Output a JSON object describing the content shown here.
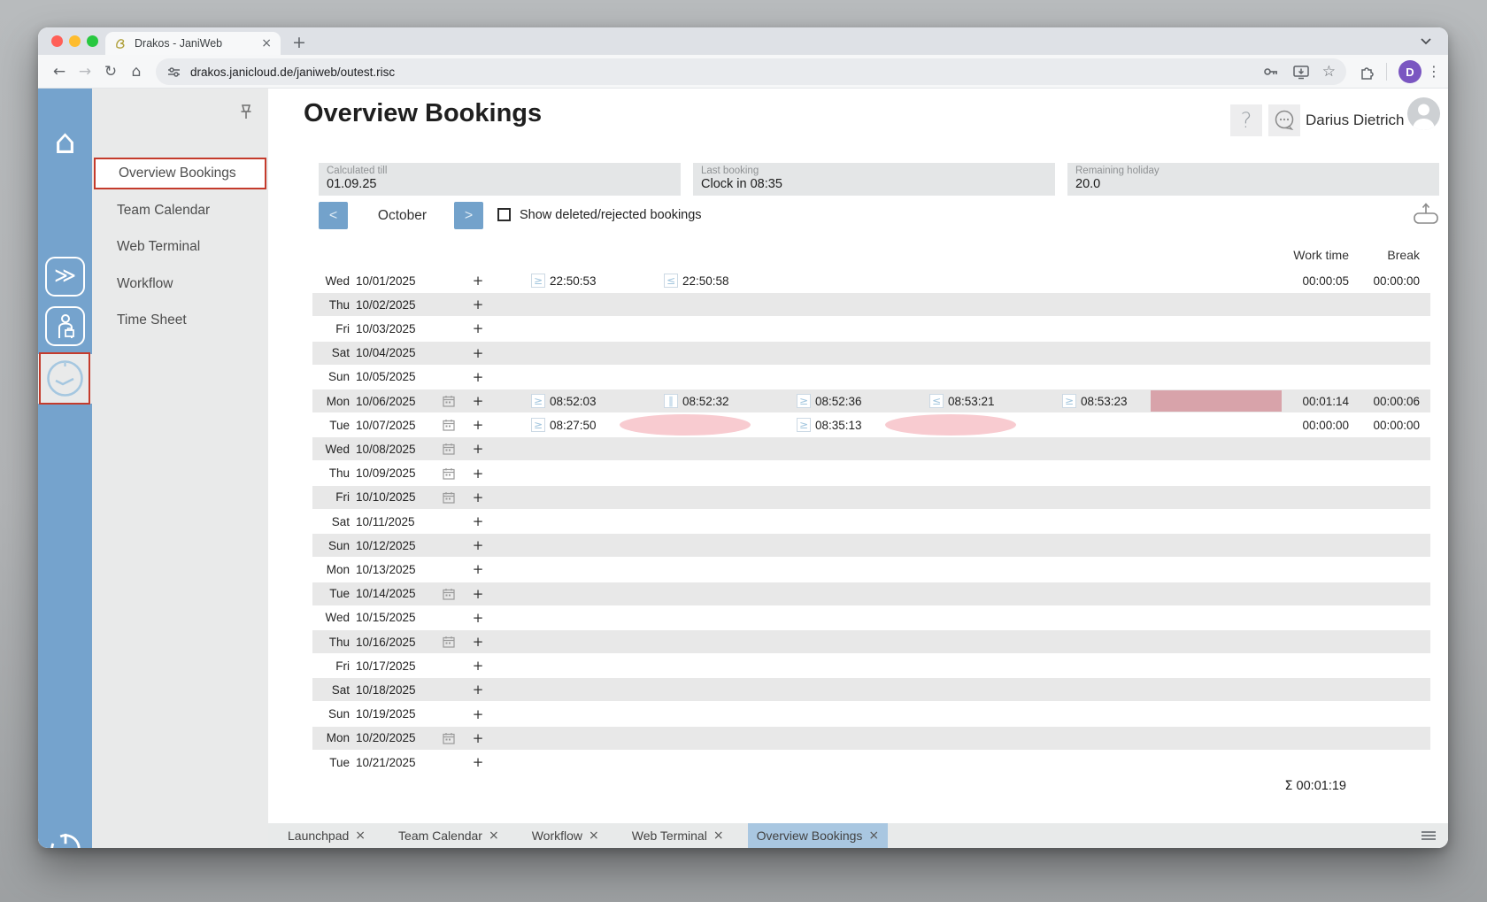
{
  "browser": {
    "tab_title": "Drakos - JaniWeb",
    "url": "drakos.janicloud.de/janiweb/outest.risc",
    "profile_initial": "D"
  },
  "header": {
    "title": "Overview Bookings",
    "user_name": "Darius Dietrich"
  },
  "info_boxes": [
    {
      "label": "Calculated till",
      "value": "01.09.25"
    },
    {
      "label": "Last booking",
      "value": "Clock in 08:35"
    },
    {
      "label": "Remaining holiday",
      "value": "20.0"
    }
  ],
  "month_nav": {
    "prev": "<",
    "month": "October",
    "next": ">",
    "checkbox_label": "Show deleted/rejected bookings",
    "checkbox_checked": false
  },
  "icons": {
    "help": "?",
    "add": "+",
    "close": "×",
    "sum": "Σ",
    "in": "≥",
    "out": "≤",
    "pause": "∥"
  },
  "table": {
    "headers": {
      "work": "Work time",
      "break": "Break"
    },
    "sum_total": "00:01:19",
    "rows": [
      {
        "day": "Wed",
        "date": "10/01/2025",
        "cal": false,
        "slots": [
          {
            "t": "in",
            "time": "22:50:53"
          },
          {
            "t": "out",
            "time": "22:50:58"
          },
          null,
          null,
          null,
          null
        ],
        "work": "00:00:05",
        "break": "00:00:00"
      },
      {
        "day": "Thu",
        "date": "10/02/2025",
        "cal": false,
        "slots": [],
        "work": "",
        "break": ""
      },
      {
        "day": "Fri",
        "date": "10/03/2025",
        "cal": false,
        "slots": [],
        "work": "",
        "break": ""
      },
      {
        "day": "Sat",
        "date": "10/04/2025",
        "cal": false,
        "slots": [],
        "work": "",
        "break": ""
      },
      {
        "day": "Sun",
        "date": "10/05/2025",
        "cal": false,
        "slots": [],
        "work": "",
        "break": ""
      },
      {
        "day": "Mon",
        "date": "10/06/2025",
        "cal": true,
        "slots": [
          {
            "t": "in",
            "time": "08:52:03"
          },
          {
            "t": "pause",
            "time": "08:52:32"
          },
          {
            "t": "in",
            "time": "08:52:36"
          },
          {
            "t": "out",
            "time": "08:53:21"
          },
          {
            "t": "in",
            "time": "08:53:23"
          },
          {
            "t": "block-dark"
          }
        ],
        "work": "00:01:14",
        "break": "00:00:06"
      },
      {
        "day": "Tue",
        "date": "10/07/2025",
        "cal": true,
        "slots": [
          {
            "t": "in",
            "time": "08:27:50"
          },
          {
            "t": "block-light"
          },
          {
            "t": "in",
            "time": "08:35:13"
          },
          {
            "t": "block-light"
          },
          null,
          null
        ],
        "work": "00:00:00",
        "break": "00:00:00"
      },
      {
        "day": "Wed",
        "date": "10/08/2025",
        "cal": true,
        "slots": [],
        "work": "",
        "break": ""
      },
      {
        "day": "Thu",
        "date": "10/09/2025",
        "cal": true,
        "slots": [],
        "work": "",
        "break": ""
      },
      {
        "day": "Fri",
        "date": "10/10/2025",
        "cal": true,
        "slots": [],
        "work": "",
        "break": ""
      },
      {
        "day": "Sat",
        "date": "10/11/2025",
        "cal": false,
        "slots": [],
        "work": "",
        "break": ""
      },
      {
        "day": "Sun",
        "date": "10/12/2025",
        "cal": false,
        "slots": [],
        "work": "",
        "break": ""
      },
      {
        "day": "Mon",
        "date": "10/13/2025",
        "cal": false,
        "slots": [],
        "work": "",
        "break": ""
      },
      {
        "day": "Tue",
        "date": "10/14/2025",
        "cal": true,
        "slots": [],
        "work": "",
        "break": ""
      },
      {
        "day": "Wed",
        "date": "10/15/2025",
        "cal": false,
        "slots": [],
        "work": "",
        "break": ""
      },
      {
        "day": "Thu",
        "date": "10/16/2025",
        "cal": true,
        "slots": [],
        "work": "",
        "break": ""
      },
      {
        "day": "Fri",
        "date": "10/17/2025",
        "cal": false,
        "slots": [],
        "work": "",
        "break": ""
      },
      {
        "day": "Sat",
        "date": "10/18/2025",
        "cal": false,
        "slots": [],
        "work": "",
        "break": ""
      },
      {
        "day": "Sun",
        "date": "10/19/2025",
        "cal": false,
        "slots": [],
        "work": "",
        "break": ""
      },
      {
        "day": "Mon",
        "date": "10/20/2025",
        "cal": true,
        "slots": [],
        "work": "",
        "break": ""
      },
      {
        "day": "Tue",
        "date": "10/21/2025",
        "cal": false,
        "slots": [],
        "work": "",
        "break": ""
      }
    ]
  },
  "sidebar": {
    "items": [
      {
        "label": "Overview Bookings",
        "active": true
      },
      {
        "label": "Team Calendar",
        "active": false
      },
      {
        "label": "Web Terminal",
        "active": false
      },
      {
        "label": "Workflow",
        "active": false
      },
      {
        "label": "Time Sheet",
        "active": false
      }
    ]
  },
  "bottom_tabs": [
    {
      "label": "Launchpad",
      "active": false
    },
    {
      "label": "Team Calendar",
      "active": false
    },
    {
      "label": "Workflow",
      "active": false
    },
    {
      "label": "Web Terminal",
      "active": false
    },
    {
      "label": "Overview Bookings",
      "active": true
    }
  ],
  "colors": {
    "rail_blue": "#75a3cd",
    "nav_button_blue": "#73a2cb",
    "active_tab_blue": "#a9c7e1",
    "row_shade": "#e8e8e8",
    "deleted_block_dark": "#d8a3aa",
    "deleted_block_light": "#f8cbd0",
    "annotation_red": "#c43b2c",
    "traffic_red": "#ff5f57",
    "traffic_yellow": "#febc2e",
    "traffic_green": "#28c840"
  }
}
